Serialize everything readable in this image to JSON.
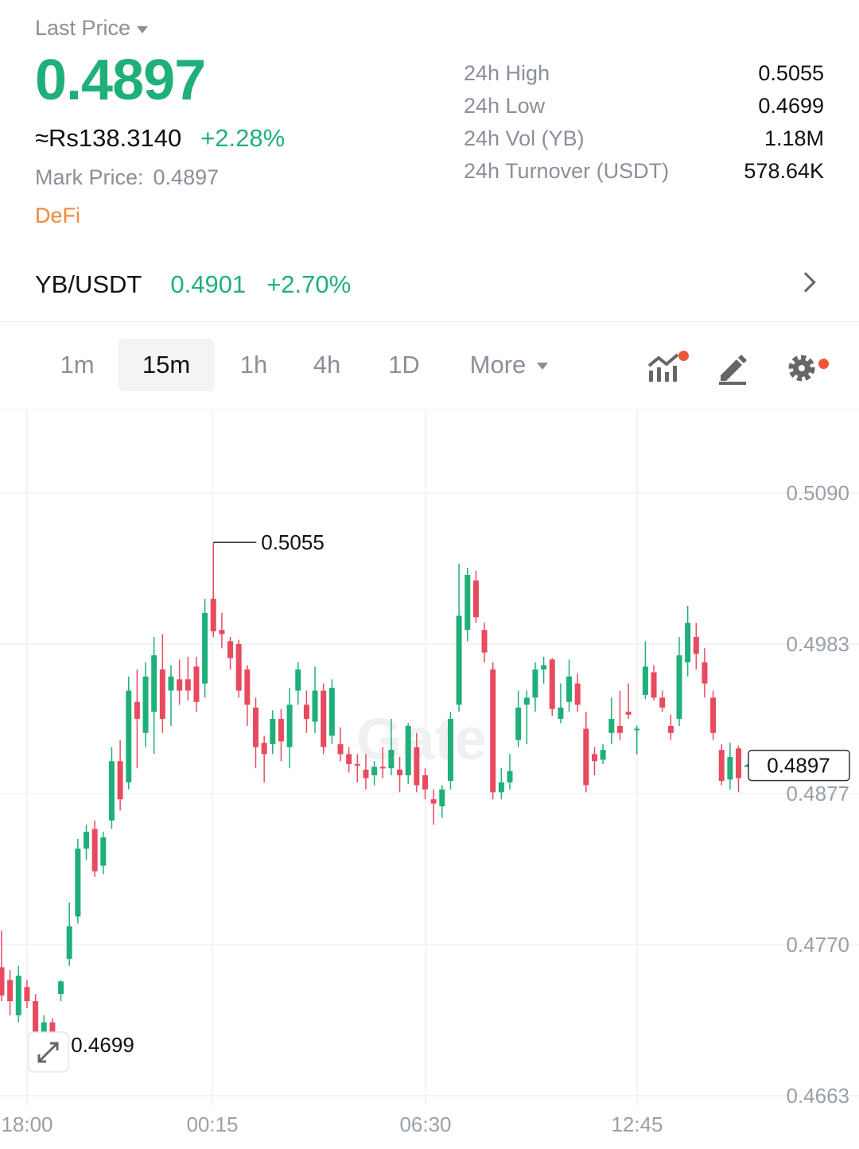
{
  "header": {
    "last_price_label": "Last Price",
    "last_price": "0.4897",
    "fiat_price": "≈Rs138.3140",
    "change_pct": "+2.28%",
    "mark_price_label": "Mark Price:",
    "mark_price": "0.4897",
    "tag": "DeFi"
  },
  "stats": [
    {
      "label": "24h High",
      "value": "0.5055"
    },
    {
      "label": "24h Low",
      "value": "0.4699"
    },
    {
      "label": "24h Vol (YB)",
      "value": "1.18M"
    },
    {
      "label": "24h Turnover (USDT)",
      "value": "578.64K"
    }
  ],
  "pair": {
    "name": "YB/USDT",
    "price": "0.4901",
    "change": "+2.70%"
  },
  "timeframes": [
    "1m",
    "15m",
    "1h",
    "4h",
    "1D"
  ],
  "active_timeframe": "15m",
  "more_label": "More",
  "toolbar_icons": [
    "indicators-icon",
    "draw-icon",
    "settings-icon"
  ],
  "colors": {
    "up": "#1fb07a",
    "down": "#e84a5f",
    "accent": "#f0883a",
    "badge": "#f0553a"
  },
  "chart_data": {
    "type": "candlestick",
    "interval": "15m",
    "y_ticks": [
      "0.5090",
      "0.4983",
      "0.4877",
      "0.4770",
      "0.4663"
    ],
    "x_ticks": [
      "18:00",
      "00:15",
      "06:30",
      "12:45"
    ],
    "ylim": [
      0.4663,
      0.509
    ],
    "high_label": "0.5055",
    "low_label": "0.4699",
    "current_price_label": "0.4897",
    "candles": [
      [
        0.4754,
        0.4734,
        0.478,
        0.473
      ],
      [
        0.4745,
        0.473,
        0.4752,
        0.472
      ],
      [
        0.472,
        0.4748,
        0.4755,
        0.4715
      ],
      [
        0.474,
        0.473,
        0.4745,
        0.4725
      ],
      [
        0.473,
        0.4708,
        0.4735,
        0.47
      ],
      [
        0.4702,
        0.4715,
        0.472,
        0.4699
      ],
      [
        0.4715,
        0.4705,
        0.4718,
        0.4699
      ],
      [
        0.4735,
        0.4744,
        0.4745,
        0.473
      ],
      [
        0.476,
        0.4783,
        0.48,
        0.4755
      ],
      [
        0.479,
        0.4838,
        0.4845,
        0.4785
      ],
      [
        0.4838,
        0.485,
        0.4855,
        0.483
      ],
      [
        0.4852,
        0.4822,
        0.4858,
        0.4818
      ],
      [
        0.4826,
        0.4846,
        0.485,
        0.482
      ],
      [
        0.4858,
        0.49,
        0.491,
        0.4852
      ],
      [
        0.49,
        0.4873,
        0.4915,
        0.4865
      ],
      [
        0.4885,
        0.495,
        0.496,
        0.488
      ],
      [
        0.4942,
        0.493,
        0.4965,
        0.4895
      ],
      [
        0.492,
        0.496,
        0.497,
        0.491
      ],
      [
        0.4935,
        0.4975,
        0.4988,
        0.4905
      ],
      [
        0.4965,
        0.493,
        0.499,
        0.492
      ],
      [
        0.495,
        0.496,
        0.4968,
        0.4925
      ],
      [
        0.4958,
        0.495,
        0.4972,
        0.494
      ],
      [
        0.4958,
        0.495,
        0.4974,
        0.4943
      ],
      [
        0.4967,
        0.4942,
        0.4974,
        0.4935
      ],
      [
        0.4955,
        0.5005,
        0.5015,
        0.4945
      ],
      [
        0.5015,
        0.4992,
        0.5055,
        0.4988
      ],
      [
        0.4993,
        0.499,
        0.5005,
        0.498
      ],
      [
        0.4985,
        0.4973,
        0.4988,
        0.4965
      ],
      [
        0.4983,
        0.495,
        0.4986,
        0.4945
      ],
      [
        0.4965,
        0.494,
        0.4968,
        0.4925
      ],
      [
        0.4938,
        0.491,
        0.4945,
        0.4895
      ],
      [
        0.4913,
        0.4905,
        0.4918,
        0.4885
      ],
      [
        0.4912,
        0.493,
        0.4936,
        0.4905
      ],
      [
        0.493,
        0.4914,
        0.4937,
        0.49
      ],
      [
        0.491,
        0.494,
        0.4952,
        0.4895
      ],
      [
        0.495,
        0.4965,
        0.497,
        0.494
      ],
      [
        0.494,
        0.493,
        0.495,
        0.492
      ],
      [
        0.4928,
        0.495,
        0.4967,
        0.492
      ],
      [
        0.495,
        0.491,
        0.4955,
        0.4905
      ],
      [
        0.4918,
        0.4952,
        0.4958,
        0.4912
      ],
      [
        0.4912,
        0.4905,
        0.4924,
        0.49
      ],
      [
        0.4905,
        0.4898,
        0.491,
        0.4892
      ],
      [
        0.4898,
        0.4897,
        0.4905,
        0.4885
      ],
      [
        0.4894,
        0.4888,
        0.4905,
        0.488
      ],
      [
        0.489,
        0.4896,
        0.49,
        0.4883
      ],
      [
        0.4896,
        0.4895,
        0.491,
        0.4888
      ],
      [
        0.4895,
        0.4908,
        0.493,
        0.489
      ],
      [
        0.4894,
        0.489,
        0.4903,
        0.4878
      ],
      [
        0.489,
        0.4925,
        0.4927,
        0.4884
      ],
      [
        0.491,
        0.4883,
        0.492,
        0.4878
      ],
      [
        0.489,
        0.488,
        0.4895,
        0.4873
      ],
      [
        0.4873,
        0.487,
        0.488,
        0.4855
      ],
      [
        0.4868,
        0.488,
        0.4883,
        0.486
      ],
      [
        0.4886,
        0.493,
        0.4935,
        0.488
      ],
      [
        0.494,
        0.5003,
        0.504,
        0.4935
      ],
      [
        0.4993,
        0.5032,
        0.5037,
        0.4985
      ],
      [
        0.5028,
        0.5002,
        0.5035,
        0.4998
      ],
      [
        0.4993,
        0.4977,
        0.4998,
        0.497
      ],
      [
        0.4965,
        0.4878,
        0.497,
        0.4873
      ],
      [
        0.4878,
        0.4885,
        0.4895,
        0.4873
      ],
      [
        0.4885,
        0.4893,
        0.4905,
        0.488
      ],
      [
        0.4915,
        0.4938,
        0.495,
        0.491
      ],
      [
        0.494,
        0.4945,
        0.495,
        0.4912
      ],
      [
        0.4945,
        0.4965,
        0.497,
        0.4935
      ],
      [
        0.4965,
        0.4968,
        0.4974,
        0.4955
      ],
      [
        0.4972,
        0.4937,
        0.4973,
        0.4932
      ],
      [
        0.493,
        0.4938,
        0.4955,
        0.4927
      ],
      [
        0.4942,
        0.496,
        0.4972,
        0.4935
      ],
      [
        0.4955,
        0.494,
        0.4962,
        0.4935
      ],
      [
        0.4923,
        0.4883,
        0.4935,
        0.4878
      ],
      [
        0.4905,
        0.49,
        0.491,
        0.489
      ],
      [
        0.4901,
        0.4908,
        0.4912,
        0.4898
      ],
      [
        0.492,
        0.493,
        0.4945,
        0.4912
      ],
      [
        0.4925,
        0.492,
        0.495,
        0.4915
      ],
      [
        0.4935,
        0.4933,
        0.4955,
        0.493
      ],
      [
        0.4923,
        0.4923,
        0.4925,
        0.4905
      ],
      [
        0.4947,
        0.4967,
        0.4985,
        0.4944
      ],
      [
        0.4963,
        0.4945,
        0.4968,
        0.4943
      ],
      [
        0.4945,
        0.4938,
        0.495,
        0.4935
      ],
      [
        0.4925,
        0.492,
        0.4933,
        0.4915
      ],
      [
        0.493,
        0.4975,
        0.4988,
        0.4925
      ],
      [
        0.497,
        0.4998,
        0.501,
        0.496
      ],
      [
        0.4988,
        0.4976,
        0.4998,
        0.4965
      ],
      [
        0.497,
        0.4955,
        0.498,
        0.4945
      ],
      [
        0.4945,
        0.492,
        0.495,
        0.4915
      ],
      [
        0.4908,
        0.4886,
        0.4912,
        0.4883
      ],
      [
        0.4887,
        0.4903,
        0.4913,
        0.488
      ],
      [
        0.4909,
        0.4888,
        0.4911,
        0.4878
      ],
      [
        0.4897,
        0.4897,
        0.4898,
        0.4896
      ]
    ]
  }
}
